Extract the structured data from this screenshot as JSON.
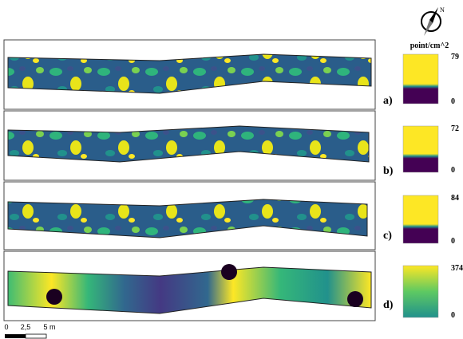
{
  "colorbar_unit": "point/cm^2",
  "panels": [
    {
      "label": "a)",
      "colorbar": {
        "max": 79,
        "min": 0
      }
    },
    {
      "label": "b)",
      "colorbar": {
        "max": 72,
        "min": 0
      }
    },
    {
      "label": "c)",
      "colorbar": {
        "max": 84,
        "min": 0
      }
    },
    {
      "label": "d)",
      "colorbar": {
        "max": 374,
        "min": 0
      }
    }
  ],
  "scale_bar": {
    "labels": [
      "0",
      "2,5",
      "5 m"
    ]
  }
}
